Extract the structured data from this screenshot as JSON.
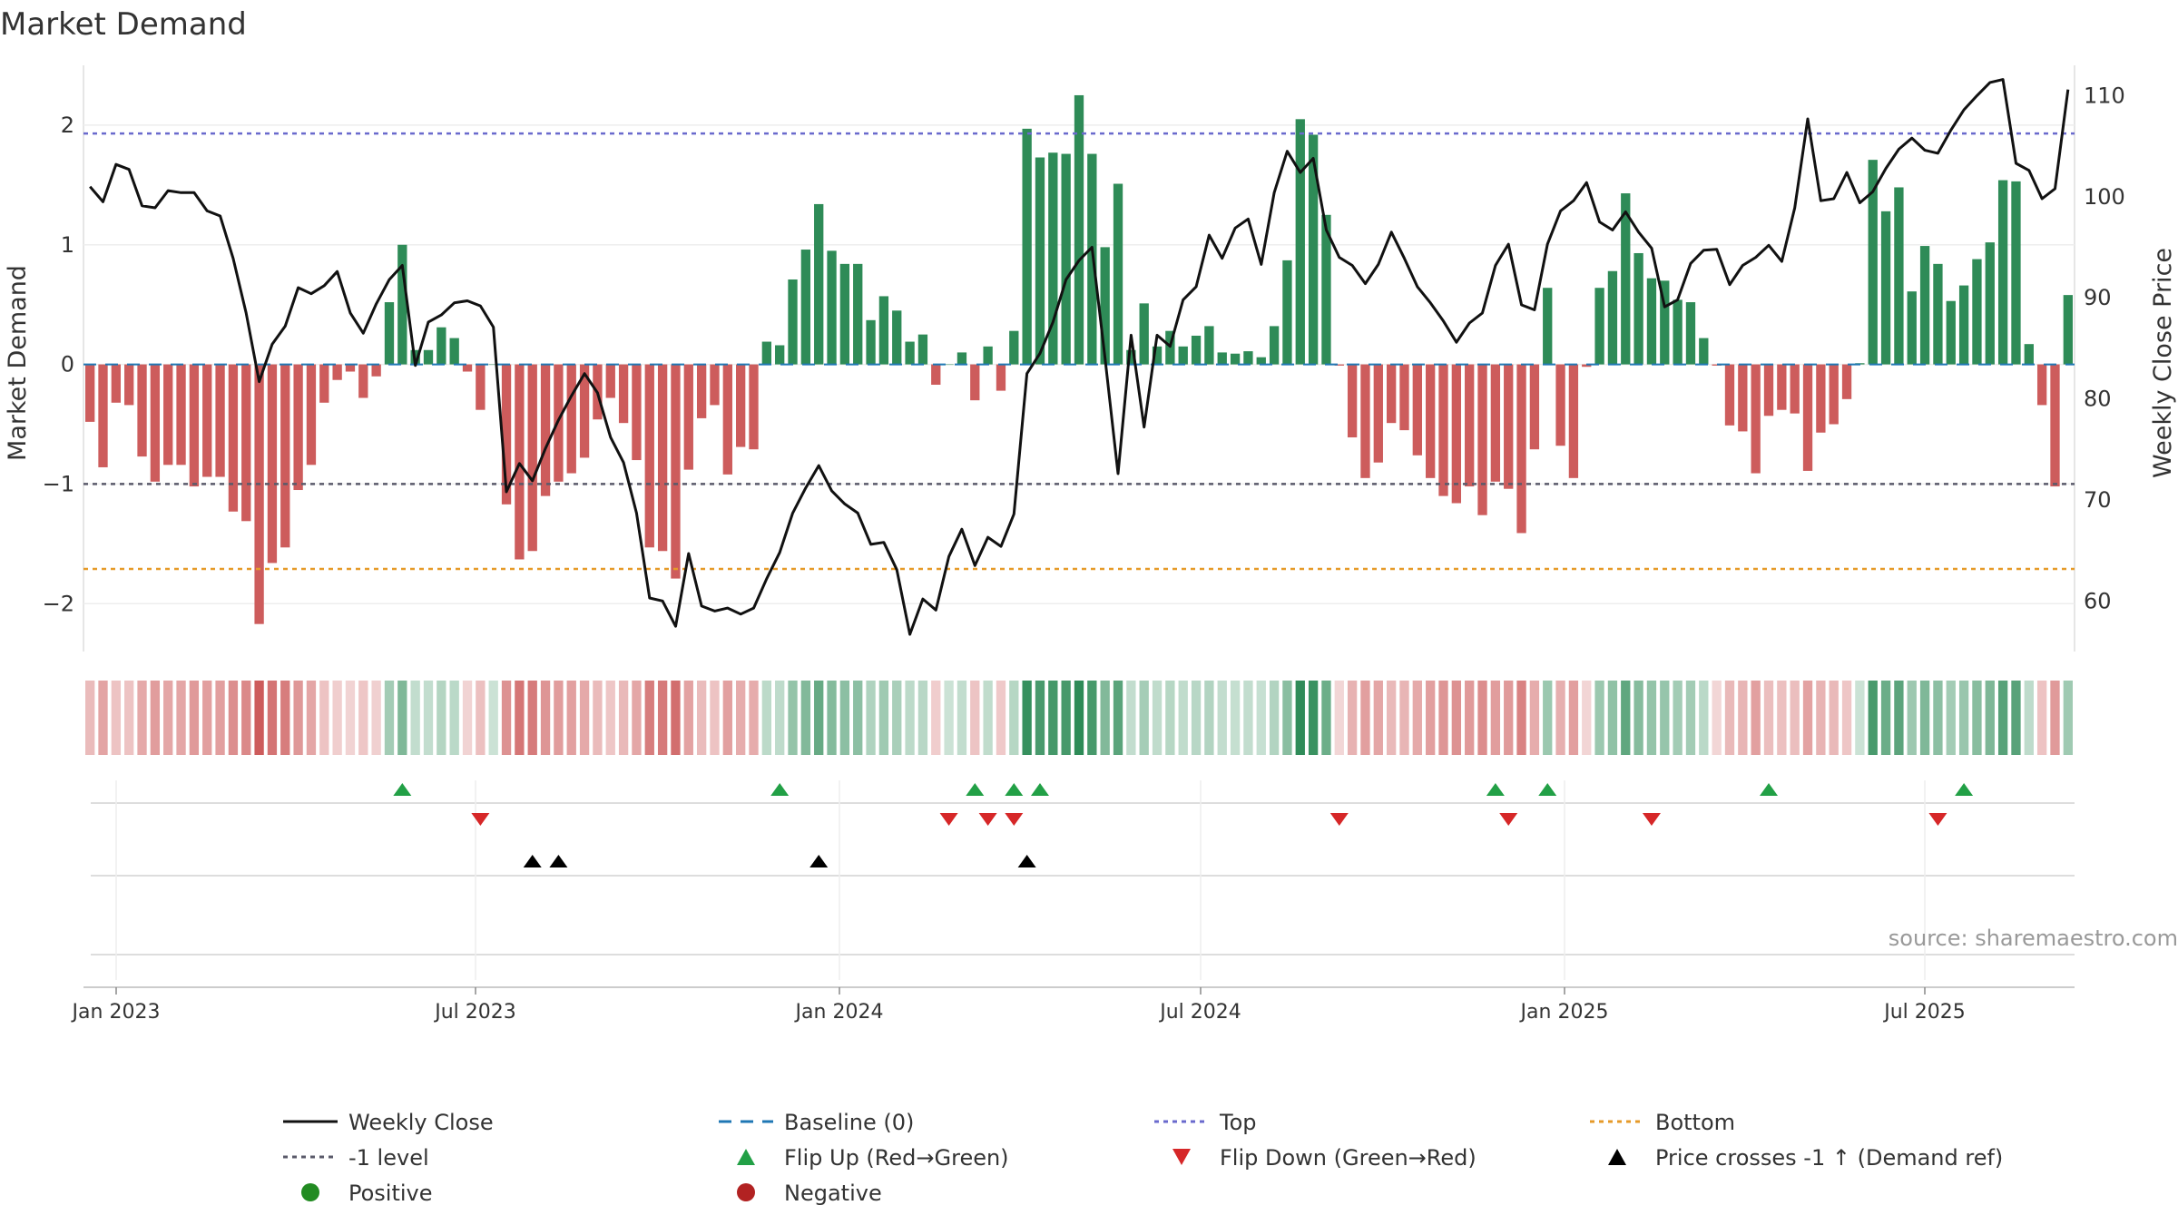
{
  "chart_data": {
    "type": "bar",
    "title": "Market Demand",
    "ylabel_left": "Market Demand",
    "ylabel_right": "Weekly Close Price",
    "source": "source: sharemaestro.com",
    "x_tick_labels": [
      "Jan 2023",
      "Jul 2023",
      "Jan 2024",
      "Jul 2024",
      "Jan 2025",
      "Jul 2025"
    ],
    "ylim_left": [
      -2.4,
      2.5
    ],
    "ylim_right": [
      55,
      113
    ],
    "left_ticks": [
      2,
      1,
      0,
      -1,
      -2
    ],
    "left_tick_labels": [
      "2",
      "1",
      "0",
      "−1",
      "−2"
    ],
    "right_ticks": [
      110,
      100,
      90,
      80,
      70,
      60
    ],
    "right_tick_labels": [
      "110",
      "100",
      "90",
      "80",
      "70",
      "60"
    ],
    "reference_lines": {
      "top": 1.93,
      "bottom": -1.71,
      "minus_one": -1,
      "baseline": 0
    },
    "demand": [
      -0.48,
      -0.86,
      -0.32,
      -0.34,
      -0.77,
      -0.98,
      -0.84,
      -0.84,
      -1.02,
      -0.94,
      -0.94,
      -1.23,
      -1.31,
      -2.17,
      -1.66,
      -1.53,
      -1.05,
      -0.84,
      -0.32,
      -0.13,
      -0.06,
      -0.28,
      -0.1,
      0.52,
      1.0,
      0.12,
      0.12,
      0.31,
      0.22,
      -0.06,
      -0.38,
      0.0,
      -1.17,
      -1.63,
      -1.56,
      -1.1,
      -0.98,
      -0.91,
      -0.78,
      -0.46,
      -0.28,
      -0.49,
      -0.8,
      -1.53,
      -1.56,
      -1.79,
      -0.88,
      -0.45,
      -0.34,
      -0.92,
      -0.69,
      -0.71,
      0.19,
      0.16,
      0.71,
      0.96,
      1.34,
      0.95,
      0.84,
      0.84,
      0.37,
      0.57,
      0.45,
      0.19,
      0.25,
      -0.17,
      0.0,
      0.1,
      -0.3,
      0.15,
      -0.22,
      0.28,
      1.97,
      1.73,
      1.77,
      1.76,
      2.25,
      1.76,
      0.98,
      1.51,
      0.12,
      0.51,
      0.15,
      0.28,
      0.15,
      0.24,
      0.32,
      0.1,
      0.09,
      0.11,
      0.06,
      0.32,
      0.87,
      2.05,
      1.92,
      1.25,
      -0.01,
      -0.61,
      -0.95,
      -0.82,
      -0.49,
      -0.55,
      -0.76,
      -0.95,
      -1.1,
      -1.16,
      -1.02,
      -1.26,
      -0.98,
      -1.04,
      -1.41,
      -0.71,
      0.64,
      -0.68,
      -0.95,
      -0.02,
      0.64,
      0.78,
      1.43,
      0.93,
      0.72,
      0.7,
      0.54,
      0.52,
      0.22,
      -0.01,
      -0.51,
      -0.56,
      -0.91,
      -0.43,
      -0.38,
      -0.41,
      -0.89,
      -0.57,
      -0.5,
      -0.29,
      0.01,
      1.71,
      1.28,
      1.48,
      0.61,
      0.99,
      0.84,
      0.53,
      0.66,
      0.88,
      1.02,
      1.54,
      1.53,
      0.17,
      -0.34,
      -1.02,
      0.58
    ],
    "weekly_close": [
      101,
      99.5,
      103.2,
      102.7,
      99.1,
      98.9,
      100.6,
      100.4,
      100.4,
      98.6,
      98.1,
      93.9,
      88.5,
      81.7,
      85.4,
      87.2,
      91,
      90.4,
      91.2,
      92.6,
      88.5,
      86.5,
      89.4,
      91.8,
      93.2,
      83.3,
      87.6,
      88.3,
      89.5,
      89.7,
      89.2,
      87.1,
      70.8,
      73.6,
      71.9,
      75.1,
      77.9,
      80.3,
      82.5,
      80.6,
      76.2,
      73.7,
      68.7,
      60.3,
      60,
      57.5,
      64.7,
      59.5,
      59,
      59.3,
      58.7,
      59.3,
      62.2,
      64.8,
      68.7,
      71.2,
      73.4,
      70.9,
      69.6,
      68.7,
      65.6,
      65.8,
      63.1,
      56.7,
      60.2,
      59.1,
      64.4,
      67.1,
      63.5,
      66.3,
      65.4,
      68.6,
      82.5,
      84.5,
      87.6,
      91.8,
      93.7,
      95,
      84,
      72.6,
      86.3,
      77.2,
      86.3,
      85.2,
      89.8,
      91.1,
      96.2,
      93.9,
      96.9,
      97.8,
      93.3,
      100.4,
      104.5,
      102.4,
      103.8,
      96.7,
      94,
      93.2,
      91.4,
      93.3,
      96.5,
      93.9,
      91.1,
      89.5,
      87.7,
      85.6,
      87.5,
      88.5,
      93.2,
      95.3,
      89.3,
      88.8,
      95.3,
      98.6,
      99.6,
      101.4,
      97.5,
      96.7,
      98.5,
      96.5,
      94.9,
      89.1,
      89.8,
      93.4,
      94.7,
      94.8,
      91.3,
      93.2,
      94,
      95.2,
      93.6,
      98.9,
      107.7,
      99.6,
      99.8,
      102.4,
      99.4,
      100.5,
      102.8,
      104.7,
      105.8,
      104.6,
      104.3,
      106.6,
      108.6,
      110,
      111.3,
      111.6,
      103.3,
      102.6,
      99.8,
      100.8,
      110.6
    ],
    "flip_up_weeks": [
      24,
      53,
      68,
      71,
      73,
      108,
      112,
      129,
      144
    ],
    "flip_down_weeks": [
      30,
      66,
      69,
      71,
      96,
      109,
      120,
      142
    ],
    "price_cross_weeks": [
      34,
      36,
      56,
      72
    ],
    "legend": {
      "weekly_close": "Weekly Close",
      "baseline": "Baseline (0)",
      "top": "Top",
      "bottom": "Bottom",
      "minus_one": "-1 level",
      "flip_up": "Flip Up (Red→Green)",
      "flip_down": "Flip Down (Green→Red)",
      "price_cross": "Price crosses -1 ↑ (Demand ref)",
      "positive": "Positive",
      "negative": "Negative"
    },
    "colors": {
      "positive": "#2e8b57",
      "negative": "#cd5c5c",
      "price_line": "#111111",
      "top_line": "#6a6acd",
      "bottom_line": "#e69a28",
      "minus_one_line": "#5a5a6a",
      "baseline": "#1f77b4",
      "flip_up": "#22a046",
      "flip_down": "#d62728",
      "price_cross": "#000000",
      "legend_positive": "#228b22",
      "legend_negative": "#b22222"
    }
  }
}
